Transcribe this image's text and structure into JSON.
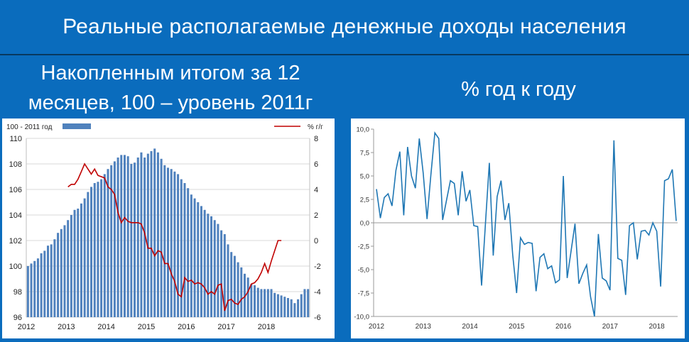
{
  "page": {
    "title": "Реальные располагаемые денежные доходы населения",
    "left_subtitle_line1": "Накопленным итогом за 12",
    "left_subtitle_line2": "месяцев, 100 – уровень 2011г",
    "right_subtitle": "% год к году"
  },
  "colors": {
    "background": "#0a6cbd",
    "bar": "#4f81bd",
    "red_line": "#c00000",
    "blue_line": "#1f77b4"
  },
  "chart_data": [
    {
      "type": "bar",
      "legend_bar_label": "100 - 2011 год",
      "legend_line_label": "%  г/г",
      "x_tick_labels": [
        "2012",
        "2013",
        "2014",
        "2015",
        "2016",
        "2017",
        "2018"
      ],
      "y_left_ticks": [
        "96",
        "98",
        "100",
        "102",
        "104",
        "106",
        "108",
        "110"
      ],
      "y_right_ticks": [
        "-6",
        "-4",
        "-2",
        "0",
        "2",
        "4",
        "6",
        "8"
      ],
      "ylim_left": [
        96,
        110
      ],
      "ylim_right": [
        -6,
        8
      ],
      "bar_values": [
        100.0,
        100.2,
        100.4,
        100.6,
        101.0,
        101.2,
        101.6,
        101.7,
        102.1,
        102.6,
        102.9,
        103.2,
        103.6,
        104.0,
        104.4,
        104.5,
        104.9,
        105.3,
        105.8,
        106.2,
        106.5,
        106.6,
        106.8,
        107.2,
        107.6,
        107.9,
        108.2,
        108.5,
        108.7,
        108.7,
        108.6,
        108.0,
        108.1,
        108.5,
        108.9,
        108.5,
        108.8,
        109.0,
        109.2,
        108.9,
        108.4,
        107.9,
        107.7,
        107.6,
        107.4,
        107.2,
        106.8,
        106.5,
        106.1,
        105.6,
        105.3,
        105.0,
        104.7,
        104.4,
        104.1,
        103.9,
        103.6,
        103.3,
        102.8,
        102.5,
        101.7,
        101.1,
        100.8,
        100.3,
        99.9,
        99.4,
        99.1,
        98.6,
        98.5,
        98.3,
        98.2,
        98.2,
        98.2,
        98.2,
        97.9,
        97.8,
        97.7,
        97.6,
        97.5,
        97.4,
        97.1,
        97.4,
        97.8,
        98.2,
        98.2
      ],
      "line_values": [
        4.2,
        4.4,
        4.4,
        4.8,
        5.4,
        6.0,
        5.6,
        5.2,
        5.6,
        5.1,
        5.0,
        4.9,
        4.2,
        4.0,
        3.6,
        2.2,
        1.4,
        1.8,
        1.5,
        1.4,
        1.4,
        1.4,
        1.3,
        0.6,
        -0.6,
        -0.6,
        -1.2,
        -0.8,
        -0.9,
        -1.8,
        -1.8,
        -2.6,
        -3.2,
        -4.2,
        -4.4,
        -2.9,
        -3.2,
        -3.1,
        -3.4,
        -3.3,
        -3.4,
        -3.7,
        -4.2,
        -4.0,
        -4.2,
        -3.5,
        -3.4,
        -5.5,
        -4.7,
        -4.6,
        -4.9,
        -5.0,
        -4.6,
        -4.4,
        -4.0,
        -3.4,
        -3.3,
        -3.0,
        -2.5,
        -1.8,
        -2.5,
        -1.6,
        -0.8,
        0.0,
        0.0
      ]
    },
    {
      "type": "line",
      "y_ticks": [
        "10,0",
        "7,5",
        "5,0",
        "2,5",
        "0,0",
        "-2,5",
        "-5,0",
        "-7,5",
        "-10,0"
      ],
      "x_tick_labels": [
        "2012",
        "2013",
        "2014",
        "2015",
        "2016",
        "2017",
        "2018"
      ],
      "ylim": [
        -10,
        10
      ],
      "values": [
        3.6,
        0.5,
        2.7,
        3.1,
        1.8,
        5.6,
        7.6,
        0.8,
        8.1,
        5.0,
        3.7,
        9.0,
        5.3,
        0.4,
        5.2,
        9.6,
        9.0,
        0.3,
        2.4,
        4.5,
        4.2,
        0.8,
        5.5,
        2.3,
        3.5,
        -0.3,
        -0.4,
        -6.7,
        0.0,
        6.4,
        -3.5,
        2.8,
        4.5,
        0.3,
        2.1,
        -3.4,
        -7.5,
        -1.6,
        -2.3,
        -2.1,
        -2.2,
        -7.3,
        -3.7,
        -3.3,
        -4.9,
        -4.6,
        -6.4,
        -6.1,
        5.0,
        -5.9,
        -3.0,
        -0.1,
        -6.5,
        -5.4,
        -4.5,
        -7.9,
        -10.0,
        -1.2,
        -5.9,
        -6.2,
        -7.2,
        8.8,
        -3.8,
        -4.0,
        -7.7,
        -0.3,
        0.0,
        -3.9,
        -0.9,
        -0.8,
        -1.3,
        0.0,
        -0.9,
        -6.8,
        4.5,
        4.7,
        5.7,
        0.2
      ]
    }
  ]
}
